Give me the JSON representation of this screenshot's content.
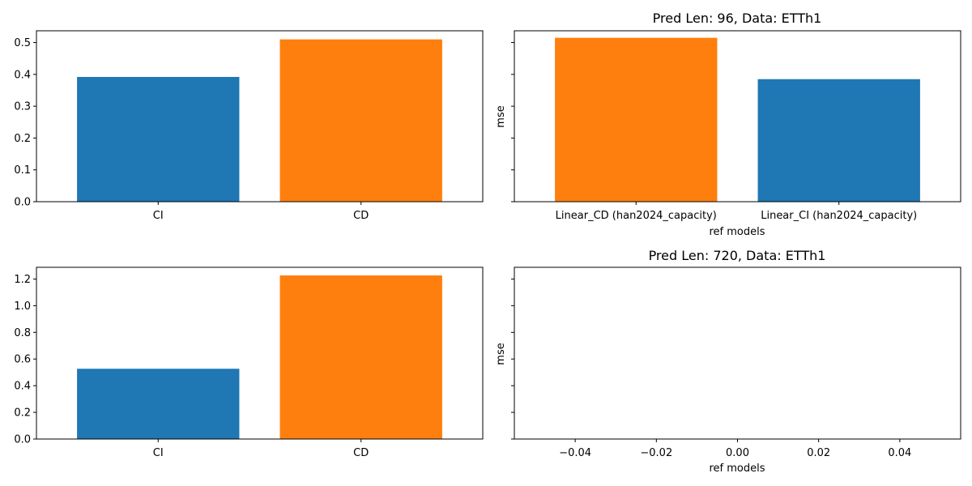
{
  "colors": {
    "blue": "#1f77b4",
    "orange": "#ff7f0e",
    "axis": "#000000",
    "background": "#ffffff"
  },
  "chart_data": [
    {
      "type": "bar",
      "title": "",
      "xlabel": "",
      "ylabel": "",
      "categories": [
        "CI",
        "CD"
      ],
      "values": [
        0.392,
        0.51
      ],
      "bar_colors": [
        "#1f77b4",
        "#ff7f0e"
      ],
      "ylim": [
        0,
        0.537
      ],
      "yticks": [
        "0.0",
        "0.1",
        "0.2",
        "0.3",
        "0.4",
        "0.5"
      ],
      "ytick_values": [
        0,
        0.1,
        0.2,
        0.3,
        0.4,
        0.5
      ]
    },
    {
      "type": "bar",
      "title": "Pred Len: 96, Data: ETTh1",
      "xlabel": "ref models",
      "ylabel": "mse",
      "categories": [
        "Linear_CD (han2024_capacity)",
        "Linear_CI (han2024_capacity)"
      ],
      "values": [
        0.515,
        0.385
      ],
      "bar_colors": [
        "#ff7f0e",
        "#1f77b4"
      ],
      "ylim": [
        0,
        0.537
      ],
      "ytick_values": [
        0,
        0.1,
        0.2,
        0.3,
        0.4,
        0.5
      ],
      "yticks_labeled": false
    },
    {
      "type": "bar",
      "title": "",
      "xlabel": "",
      "ylabel": "",
      "categories": [
        "CI",
        "CD"
      ],
      "values": [
        0.527,
        1.227
      ],
      "bar_colors": [
        "#1f77b4",
        "#ff7f0e"
      ],
      "ylim": [
        0,
        1.288
      ],
      "yticks": [
        "0.0",
        "0.2",
        "0.4",
        "0.6",
        "0.8",
        "1.0",
        "1.2"
      ],
      "ytick_values": [
        0,
        0.2,
        0.4,
        0.6,
        0.8,
        1.0,
        1.2
      ]
    },
    {
      "type": "bar",
      "title": "Pred Len: 720, Data: ETTh1",
      "xlabel": "ref models",
      "ylabel": "mse",
      "categories": [],
      "values": [],
      "xlim": [
        -0.055,
        0.055
      ],
      "xticks": [
        "−0.04",
        "−0.02",
        "0.00",
        "0.02",
        "0.04"
      ],
      "xtick_values": [
        -0.04,
        -0.02,
        0.0,
        0.02,
        0.04
      ],
      "ylim": [
        0,
        1.288
      ],
      "ytick_values": [
        0,
        0.2,
        0.4,
        0.6,
        0.8,
        1.0,
        1.2
      ],
      "yticks_labeled": false
    }
  ]
}
